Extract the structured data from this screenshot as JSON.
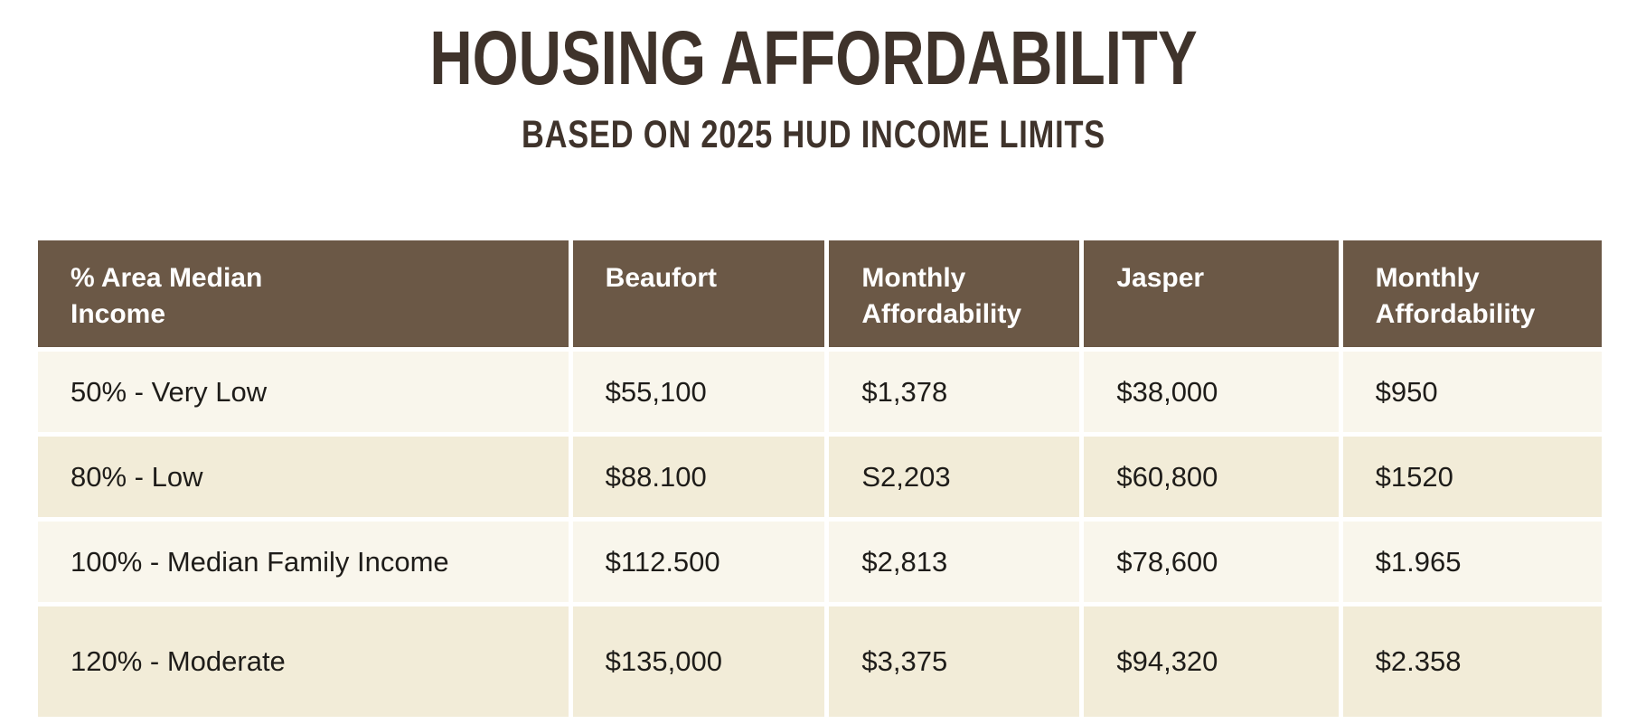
{
  "page": {
    "title": "HOUSING AFFORDABILITY",
    "subtitle": "BASED ON 2025 HUD INCOME LIMITS"
  },
  "table": {
    "header_display": [
      "% Area Median\nIncome",
      "Beaufort",
      "Monthly\nAffordability",
      "Jasper",
      "Monthly\nAffordability"
    ]
  },
  "chart_data": {
    "type": "table",
    "title": "Housing Affordability Based on 2025 HUD Income Limits",
    "columns": [
      "% Area Median Income",
      "Beaufort",
      "Monthly Affordability",
      "Jasper",
      "Monthly Affordability"
    ],
    "rows": [
      [
        "50% - Very Low",
        "$55,100",
        "$1,378",
        "$38,000",
        "$950"
      ],
      [
        "80% - Low",
        "$88.100",
        "S2,203",
        "$60,800",
        "$1520"
      ],
      [
        "100% - Median Family Income",
        "$112.500",
        "$2,813",
        "$78,600",
        "$1.965"
      ],
      [
        "120% - Moderate",
        "$135,000",
        "$3,375",
        "$94,320",
        "$2.358"
      ]
    ]
  },
  "colors": {
    "header_bg": "#6b5846",
    "row_light": "#f9f6ec",
    "row_alt": "#f2ecd8",
    "title_text": "#3f332b",
    "body_text": "#1e1c19",
    "header_text": "#ffffff",
    "page_bg": "#ffffff"
  }
}
